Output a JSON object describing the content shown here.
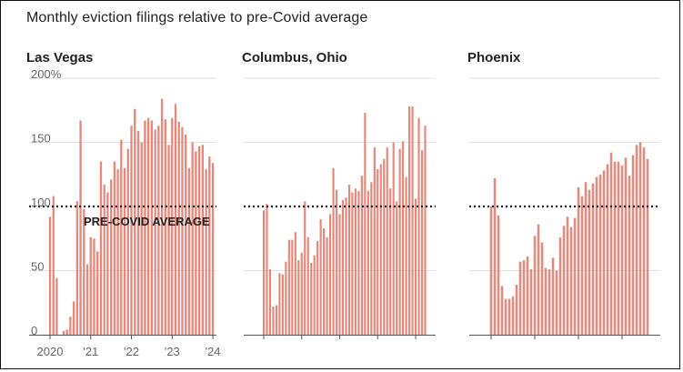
{
  "title": "Monthly eviction filings relative to pre-Covid average",
  "colors": {
    "bar": "#e8877a",
    "grid": "#e2e2e2",
    "reference": "#222222",
    "text": "#222222",
    "tick_text": "#666666"
  },
  "chart_data": [
    {
      "type": "bar",
      "title": "Las Vegas",
      "x_tick_labels": [
        "2020",
        "'21",
        "'22",
        "'23",
        "'24"
      ],
      "y_tick_labels": [
        "200%",
        "150",
        "100",
        "50",
        "0"
      ],
      "ylim": [
        0,
        200
      ],
      "reference_line": {
        "value": 100,
        "label": "PRE-COVID AVERAGE"
      },
      "start_month": "2020-01",
      "values": [
        92,
        108,
        44,
        0,
        3,
        4,
        14,
        26,
        104,
        167,
        98,
        55,
        76,
        75,
        65,
        135,
        117,
        111,
        121,
        135,
        129,
        152,
        130,
        145,
        163,
        176,
        159,
        150,
        167,
        169,
        167,
        160,
        163,
        184,
        168,
        148,
        169,
        180,
        166,
        162,
        156,
        130,
        150,
        143,
        147,
        148,
        129,
        139,
        134
      ]
    },
    {
      "type": "bar",
      "title": "Columbus, Ohio",
      "start_month": "2020-01",
      "ylim": [
        0,
        200
      ],
      "reference_line": {
        "value": 100
      },
      "values": [
        97,
        102,
        51,
        22,
        23,
        48,
        47,
        57,
        74,
        74,
        80,
        58,
        64,
        104,
        76,
        56,
        62,
        73,
        90,
        83,
        76,
        94,
        130,
        113,
        94,
        105,
        107,
        117,
        111,
        114,
        112,
        124,
        173,
        112,
        119,
        146,
        129,
        133,
        137,
        146,
        114,
        150,
        104,
        145,
        151,
        123,
        178,
        178,
        106,
        169,
        144,
        163
      ]
    },
    {
      "type": "bar",
      "title": "Phoenix",
      "start_month": "2020-01",
      "ylim": [
        0,
        200
      ],
      "reference_line": {
        "value": 100
      },
      "values": [
        100,
        122,
        93,
        38,
        28,
        28,
        30,
        39,
        57,
        58,
        61,
        51,
        77,
        86,
        72,
        52,
        51,
        60,
        50,
        76,
        85,
        92,
        84,
        91,
        115,
        108,
        119,
        113,
        118,
        123,
        125,
        128,
        133,
        142,
        135,
        135,
        132,
        138,
        124,
        140,
        148,
        150,
        146,
        137
      ]
    }
  ]
}
